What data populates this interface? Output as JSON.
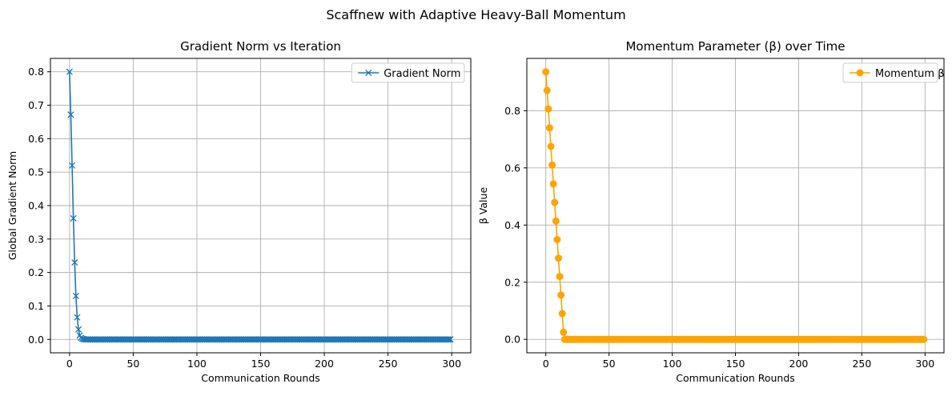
{
  "figure": {
    "suptitle": "Scaffnew with Adaptive Heavy-Ball Momentum"
  },
  "chart_data": [
    {
      "type": "line",
      "title": "Gradient Norm vs Iteration",
      "xlabel": "Communication Rounds",
      "ylabel": "Global Gradient Norm",
      "xlim": [
        -15,
        315
      ],
      "ylim": [
        -0.04,
        0.84
      ],
      "xticks": [
        0,
        50,
        100,
        150,
        200,
        250,
        300
      ],
      "yticks": [
        0.0,
        0.1,
        0.2,
        0.3,
        0.4,
        0.5,
        0.6,
        0.7,
        0.8
      ],
      "ytick_labels": [
        "0.0",
        "0.1",
        "0.2",
        "0.3",
        "0.4",
        "0.5",
        "0.6",
        "0.7",
        "0.8"
      ],
      "grid": true,
      "legend_position": "upper-right",
      "series": [
        {
          "name": "Gradient Norm",
          "color": "#1f77b4",
          "marker": "x",
          "initial": [
            0.8,
            0.672,
            0.52,
            0.362,
            0.23,
            0.13,
            0.066,
            0.03,
            0.012,
            0.005,
            0.002,
            0.001
          ],
          "tail_value": 0.0,
          "x_end": 299
        }
      ]
    },
    {
      "type": "line",
      "title": "Momentum Parameter (β) over Time",
      "xlabel": "Communication Rounds",
      "ylabel": "β Value",
      "xlim": [
        -15,
        315
      ],
      "ylim": [
        -0.047,
        0.983
      ],
      "xticks": [
        0,
        50,
        100,
        150,
        200,
        250,
        300
      ],
      "yticks": [
        0.0,
        0.2,
        0.4,
        0.6,
        0.8
      ],
      "ytick_labels": [
        "0.0",
        "0.2",
        "0.4",
        "0.6",
        "0.8"
      ],
      "grid": true,
      "legend_position": "upper-right",
      "series": [
        {
          "name": "Momentum β",
          "color": "#ffa500",
          "marker": "o",
          "initial": [
            0.936,
            0.871,
            0.806,
            0.74,
            0.675,
            0.61,
            0.544,
            0.479,
            0.414,
            0.349,
            0.284,
            0.22,
            0.155,
            0.09,
            0.025
          ],
          "tail_value": 0.0,
          "x_end": 299
        }
      ]
    }
  ]
}
